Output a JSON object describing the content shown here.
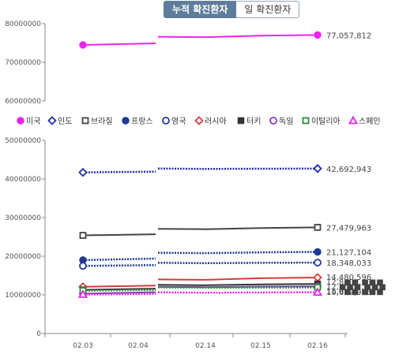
{
  "toggle": {
    "cumulative_label": "누적 확진환자",
    "daily_label": "일 확진환자"
  },
  "chart_data": {
    "type": "line",
    "x": [
      "02.03",
      "02.04",
      "02.14",
      "02.15",
      "02.16"
    ],
    "ylim": [
      0,
      80000000
    ],
    "yticks": [
      0,
      10000000,
      20000000,
      30000000,
      40000000,
      50000000,
      60000000,
      70000000,
      80000000
    ],
    "ytick_labels": [
      "0",
      "10000000",
      "20000000",
      "30000000",
      "40000000",
      "50000000",
      "60000000",
      "70000000",
      "80000000"
    ],
    "broken_axis": {
      "lower": [
        0,
        50000000
      ],
      "upper": [
        60000000,
        80000000
      ]
    },
    "legend_position": "middle",
    "series": [
      {
        "name": "미국",
        "color": "#ee22ee",
        "marker": "circle-filled",
        "dash": "solid",
        "values": [
          74500000,
          74900000,
          76500000,
          76900000,
          77057812
        ],
        "end_label": "77,057,812"
      },
      {
        "name": "인도",
        "color": "#1f2fa8",
        "marker": "diamond-open",
        "dash": "dotted",
        "values": [
          41700000,
          41900000,
          42600000,
          42650000,
          42692943
        ],
        "end_label": "42,692,943"
      },
      {
        "name": "브라질",
        "color": "#444444",
        "marker": "square-open",
        "dash": "solid",
        "values": [
          25400000,
          25700000,
          27000000,
          27300000,
          27479963
        ],
        "end_label": "27,479,963"
      },
      {
        "name": "프랑스",
        "color": "#1f3a93",
        "marker": "circle-filled",
        "dash": "dotted",
        "values": [
          19000000,
          19400000,
          20800000,
          21000000,
          21127104
        ],
        "end_label": "21,127,104"
      },
      {
        "name": "영국",
        "color": "#1f3a93",
        "marker": "circle-open",
        "dash": "dotted",
        "values": [
          17500000,
          17700000,
          18200000,
          18300000,
          18348033
        ],
        "end_label": "18,348,033"
      },
      {
        "name": "러시아",
        "color": "#d63a3a",
        "marker": "diamond-open",
        "dash": "solid",
        "values": [
          12100000,
          12400000,
          13900000,
          14300000,
          14480596
        ],
        "end_label": "14,480,596"
      },
      {
        "name": "터키",
        "color": "#333333",
        "marker": "square-filled",
        "dash": "solid",
        "values": [
          11300000,
          11600000,
          12500000,
          12700000,
          12830000
        ],
        "end_label": "12,8■■,■■■"
      },
      {
        "name": "독일",
        "color": "#7b3fb3",
        "marker": "circle-open",
        "dash": "solid",
        "values": [
          10300000,
          10700000,
          12000000,
          12150000,
          12200000
        ],
        "end_label": "12,■■■,■■■"
      },
      {
        "name": "이탈리아",
        "color": "#2e8b3a",
        "marker": "square-open",
        "dash": "dotted",
        "values": [
          11100000,
          11300000,
          11850000,
          11900000,
          11950000
        ],
        "end_label": "11,9■■,■■■"
      },
      {
        "name": "스페인",
        "color": "#ee22ee",
        "marker": "triangle-open",
        "dash": "dotted",
        "values": [
          10100000,
          10250000,
          10550000,
          10620000,
          10672906
        ],
        "end_label": "10,672,906"
      }
    ]
  }
}
